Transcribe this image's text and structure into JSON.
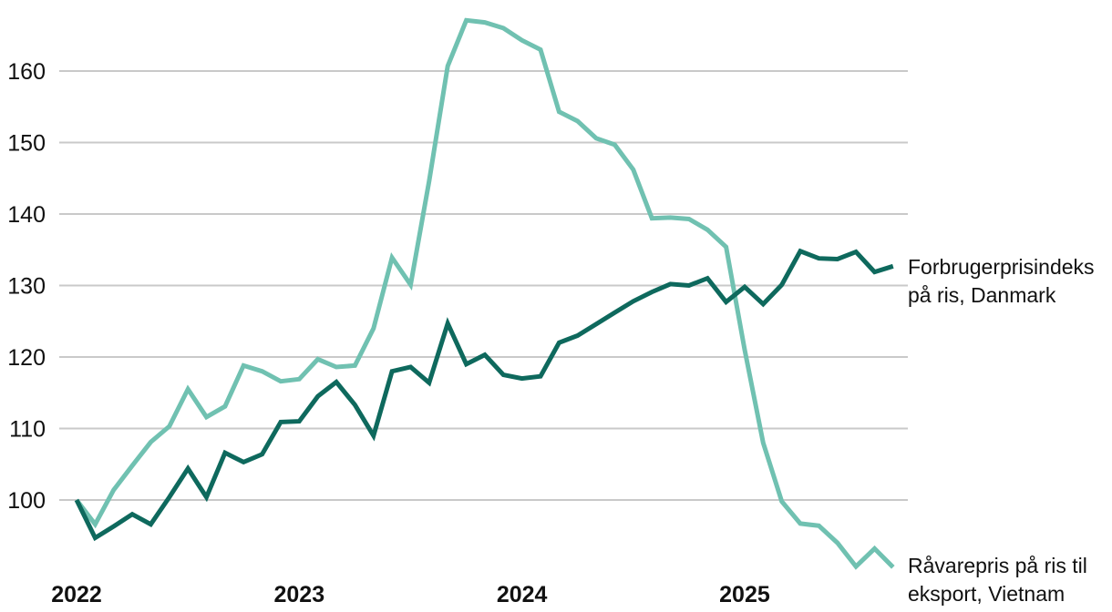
{
  "chart_data": {
    "type": "line",
    "title": "",
    "x_labels": [
      "2022-01",
      "2022-02",
      "2022-03",
      "2022-04",
      "2022-05",
      "2022-06",
      "2022-07",
      "2022-08",
      "2022-09",
      "2022-10",
      "2022-11",
      "2022-12",
      "2023-01",
      "2023-02",
      "2023-03",
      "2023-04",
      "2023-05",
      "2023-06",
      "2023-07",
      "2023-08",
      "2023-09",
      "2023-10",
      "2023-11",
      "2023-12",
      "2024-01",
      "2024-02",
      "2024-03",
      "2024-04",
      "2024-05",
      "2024-06",
      "2024-07",
      "2024-08",
      "2024-09",
      "2024-10",
      "2024-11",
      "2024-12",
      "2025-01",
      "2025-02",
      "2025-03",
      "2025-04",
      "2025-05",
      "2025-06",
      "2025-07",
      "2025-08",
      "2025-09"
    ],
    "x_tick_labels": [
      "2022",
      "2023",
      "2024",
      "2025"
    ],
    "x_tick_month_index": [
      0,
      12,
      24,
      36
    ],
    "y_ticks": [
      100,
      110,
      120,
      130,
      140,
      150,
      160
    ],
    "ylim": [
      88,
      169
    ],
    "grid": "horizontal-only",
    "legend_position": "right-of-line-ends",
    "gridline_color": "#c9c9c9",
    "text_color": "#111111",
    "background_color": "#ffffff",
    "series": [
      {
        "name": "Forbrugerprisindeks på ris, Danmark",
        "label_lines": [
          "Forbrugerprisindeks",
          "på ris, Danmark"
        ],
        "color": "#0e695d",
        "values": [
          100,
          94.7,
          96.3,
          98,
          96.6,
          100.4,
          104.4,
          100.4,
          106.6,
          105.3,
          106.4,
          110.9,
          111,
          114.5,
          116.5,
          113.3,
          109,
          118,
          118.6,
          116.4,
          124.7,
          119,
          120.3,
          117.5,
          117,
          117.3,
          122,
          123,
          124.6,
          126.2,
          127.8,
          129.1,
          130.2,
          130,
          131,
          127.7,
          129.8,
          127.4,
          130.1,
          134.8,
          133.8,
          133.7,
          134.7,
          131.9,
          132.7
        ]
      },
      {
        "name": "Råvarepris på ris til eksport, Vietnam",
        "label_lines": [
          "Råvarepris på ris til",
          "eksport, Vietnam"
        ],
        "color": "#70c1b1",
        "values": [
          100,
          96.6,
          101.4,
          104.8,
          108.1,
          110.3,
          115.5,
          111.6,
          113.1,
          118.8,
          118,
          116.6,
          116.9,
          119.7,
          118.6,
          118.8,
          124,
          133.9,
          130.1,
          144.6,
          160.7,
          167.1,
          166.8,
          166,
          164.3,
          163,
          154.3,
          153,
          150.6,
          149.7,
          146.2,
          139.4,
          139.5,
          139.3,
          137.8,
          135.4,
          121,
          108,
          99.8,
          96.7,
          96.4,
          94,
          90.7,
          93.2,
          90.6
        ]
      }
    ]
  }
}
